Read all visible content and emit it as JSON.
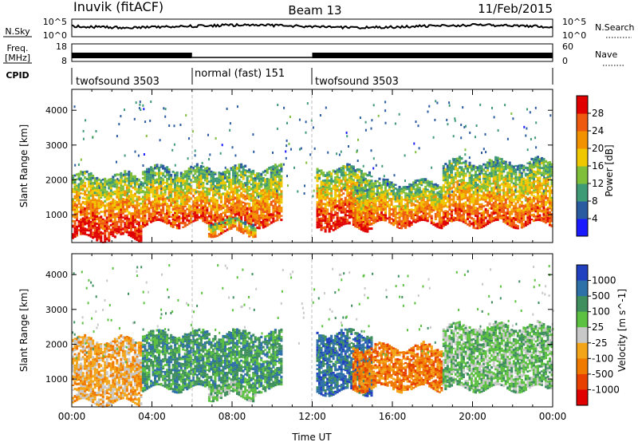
{
  "header": {
    "station": "Inuvik (fitACF)",
    "beam": "Beam 13",
    "date": "11/Feb/2015"
  },
  "strip": {
    "nsky_label": "N.Sky",
    "nsky_ticks": [
      "10^5",
      "10^0"
    ],
    "nsearch_label": "N.Search",
    "nsearch_ticks": [
      "10^5",
      "10^0"
    ],
    "freq_label": "Freq.",
    "freq_unit": "[MHz]",
    "freq_ticks": [
      "18",
      "8"
    ],
    "nave_label": "Nave",
    "nave_ticks": [
      "60",
      "0"
    ],
    "cpid_label": "CPID",
    "cpid_segments": [
      {
        "label": "twofsound 3503",
        "start": "00:00",
        "end": "06:00"
      },
      {
        "label": "normal (fast) 151",
        "start": "06:00",
        "end": "12:00"
      },
      {
        "label": "twofsound 3503",
        "start": "12:00",
        "end": "24:00"
      }
    ]
  },
  "chart_data": [
    {
      "type": "heatmap",
      "title": "Power",
      "xlabel": "",
      "ylabel": "Slant Range [km]",
      "x_ticks": [
        "00:00",
        "04:00",
        "08:00",
        "12:00",
        "16:00",
        "20:00",
        "00:00"
      ],
      "y_ticks": [
        1000,
        2000,
        3000,
        4000
      ],
      "ylim": [
        200,
        4600
      ],
      "colorbar": {
        "label": "Power [dB]",
        "ticks": [
          4,
          8,
          12,
          16,
          20,
          24,
          28
        ],
        "colors": [
          "#1a1aff",
          "#2a5aa0",
          "#3f9a76",
          "#7fbf3a",
          "#f0c800",
          "#f39200",
          "#ee5a10",
          "#e00000"
        ]
      },
      "echo_regions": [
        {
          "t_start": 0.0,
          "t_end": 3.5,
          "range_low": 300,
          "range_high": 2100,
          "peak_power": 30
        },
        {
          "t_start": 3.5,
          "t_end": 10.5,
          "range_low": 700,
          "range_high": 2300,
          "peak_power": 26
        },
        {
          "t_start": 6.8,
          "t_end": 9.2,
          "range_low": 450,
          "range_high": 800,
          "peak_power": 24
        },
        {
          "t_start": 12.2,
          "t_end": 15.0,
          "range_low": 600,
          "range_high": 2300,
          "peak_power": 30
        },
        {
          "t_start": 14.0,
          "t_end": 18.5,
          "range_low": 700,
          "range_high": 1900,
          "peak_power": 26
        },
        {
          "t_start": 18.5,
          "t_end": 24.0,
          "range_low": 700,
          "range_high": 2500,
          "peak_power": 26
        }
      ]
    },
    {
      "type": "heatmap",
      "title": "Velocity",
      "xlabel": "Time UT",
      "ylabel": "Slant Range [km]",
      "x_ticks": [
        "00:00",
        "04:00",
        "08:00",
        "12:00",
        "16:00",
        "20:00",
        "00:00"
      ],
      "y_ticks": [
        1000,
        2000,
        3000,
        4000
      ],
      "ylim": [
        200,
        4600
      ],
      "colorbar": {
        "label": "Velocity [m s^-1]",
        "ticks": [
          "1000",
          "500",
          "100",
          "25",
          "-25",
          "-100",
          "-500",
          "-1000"
        ],
        "colors": [
          "#2040c0",
          "#2e70a8",
          "#3f8f5e",
          "#5cc040",
          "#c8c8c8",
          "#f3a51a",
          "#f07a00",
          "#e84000",
          "#e00000"
        ]
      },
      "echo_regions": [
        {
          "t_start": 0.0,
          "t_end": 3.5,
          "range_low": 300,
          "range_high": 2100,
          "velocity": -100
        },
        {
          "t_start": 3.5,
          "t_end": 10.5,
          "range_low": 700,
          "range_high": 2300,
          "velocity": 100
        },
        {
          "t_start": 6.8,
          "t_end": 9.2,
          "range_low": 450,
          "range_high": 800,
          "velocity": 25
        },
        {
          "t_start": 12.2,
          "t_end": 15.0,
          "range_low": 600,
          "range_high": 2300,
          "velocity": 500
        },
        {
          "t_start": 14.0,
          "t_end": 18.5,
          "range_low": 700,
          "range_high": 1900,
          "velocity": -500
        },
        {
          "t_start": 18.5,
          "t_end": 24.0,
          "range_low": 700,
          "range_high": 2500,
          "velocity": 25
        }
      ]
    }
  ]
}
